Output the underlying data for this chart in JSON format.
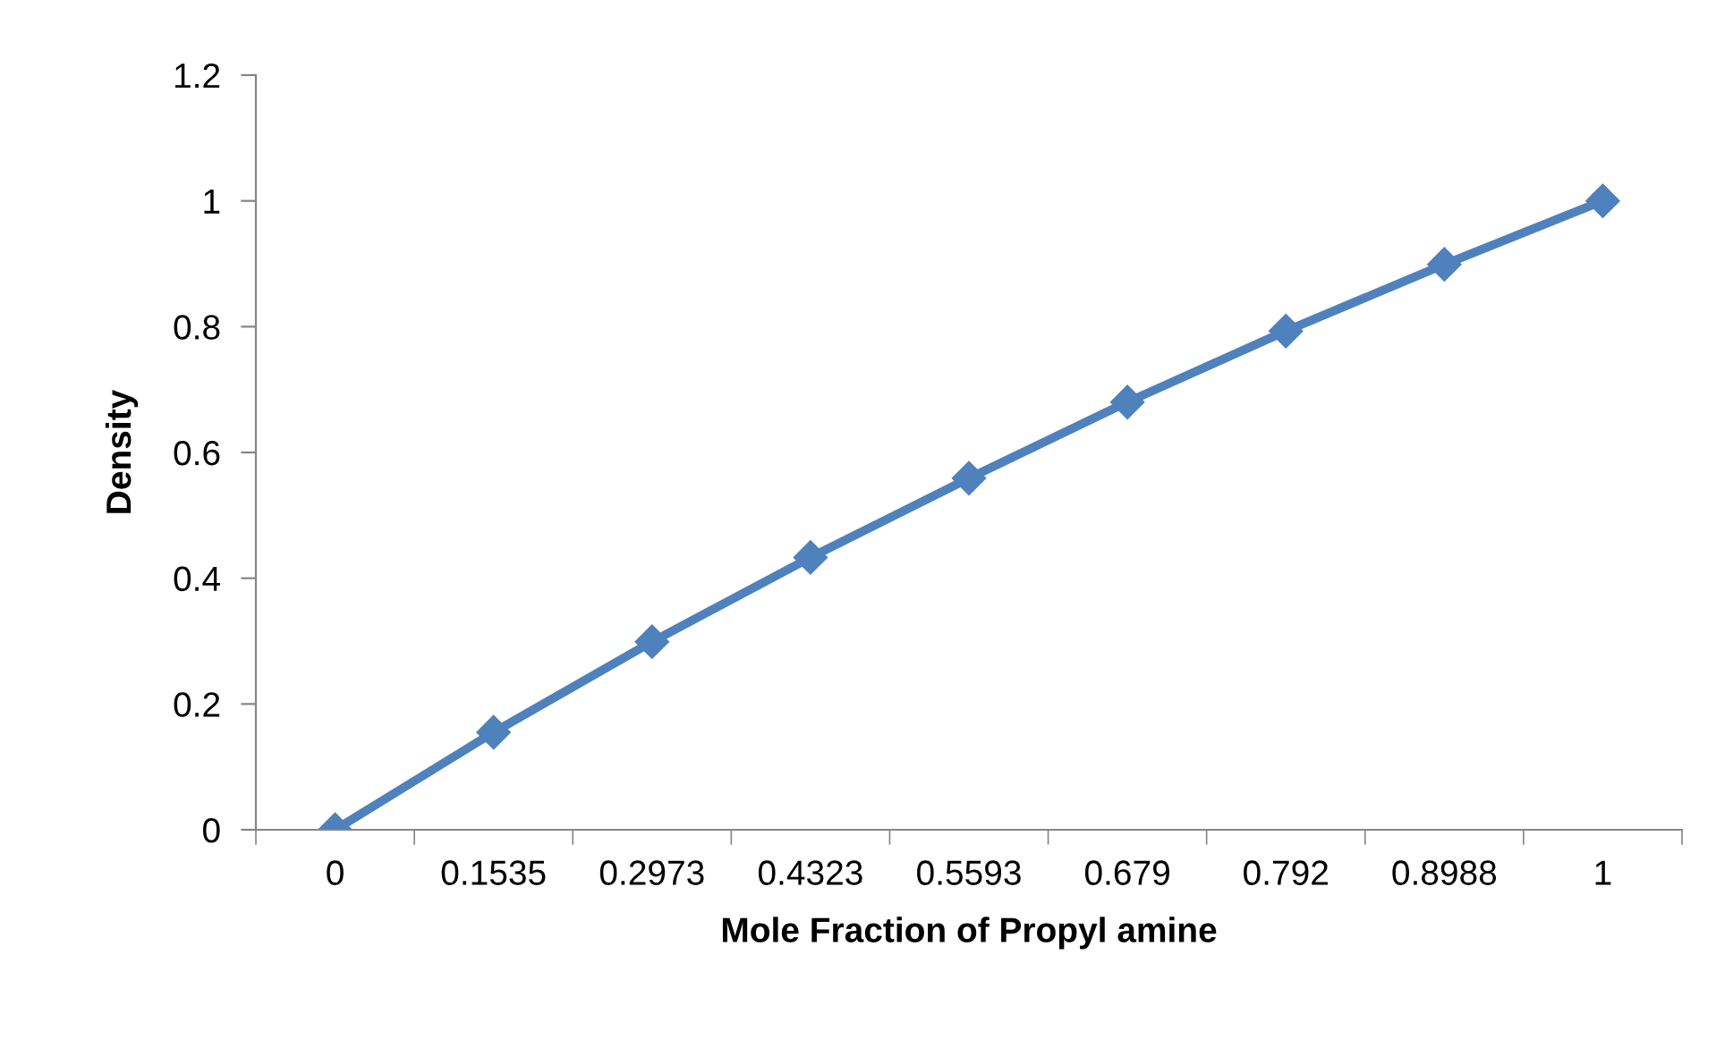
{
  "chart_data": {
    "type": "line",
    "xlabel": "Mole Fraction of Propyl amine",
    "ylabel": "Density",
    "categories": [
      "0",
      "0.1535",
      "0.2973",
      "0.4323",
      "0.5593",
      "0.679",
      "0.792",
      "0.8988",
      "1"
    ],
    "series": [
      {
        "color": "#4f81bd",
        "values": [
          0,
          0.155,
          0.299,
          0.433,
          0.559,
          0.68,
          0.793,
          0.899,
          1
        ]
      }
    ],
    "ylim": [
      0,
      1.2
    ],
    "yticks": [
      0,
      0.2,
      0.4,
      0.6,
      0.8,
      1,
      1.2
    ],
    "grid": false,
    "legend": false,
    "marker": "diamond",
    "line_style": "solid"
  }
}
